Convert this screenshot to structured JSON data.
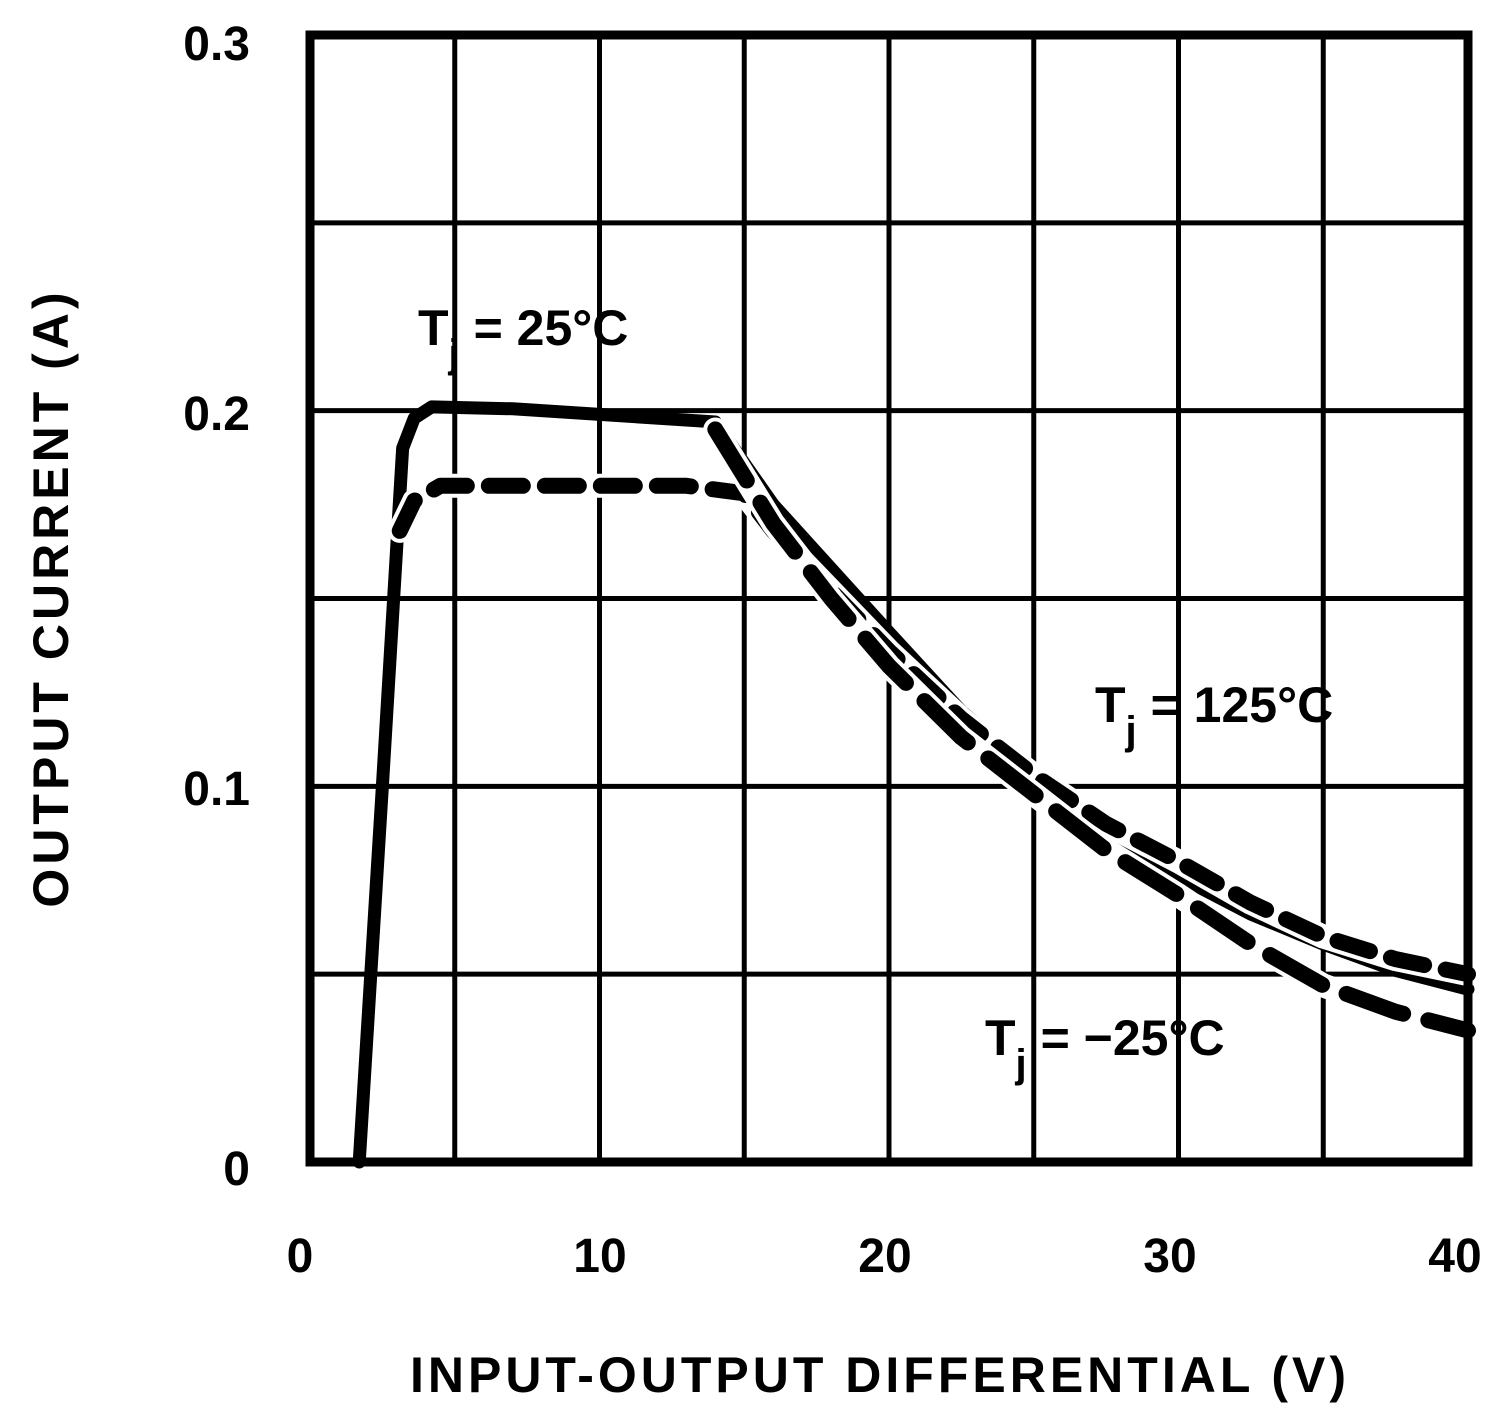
{
  "chart_data": {
    "type": "line",
    "title": "",
    "xlabel": "INPUT-OUTPUT DIFFERENTIAL (V)",
    "ylabel": "OUTPUT CURRENT (A)",
    "xlim": [
      0,
      40
    ],
    "ylim": [
      0,
      0.3
    ],
    "xticks": [
      "0",
      "10",
      "20",
      "30",
      "40"
    ],
    "yticks": [
      "0",
      "0.1",
      "0.2",
      "0.3"
    ],
    "grid": true,
    "grid_x_step": 5,
    "grid_y_step": 0.05,
    "line_color": "#000000",
    "series": [
      {
        "name": "Tj = 25°C",
        "style": "solid",
        "x": [
          1.7,
          2.5,
          3.2,
          3.6,
          4.2,
          7,
          10,
          14,
          16,
          18,
          20,
          22.5,
          25,
          27.5,
          30,
          32.5,
          35,
          37.5,
          40
        ],
        "y": [
          0,
          0.1,
          0.19,
          0.198,
          0.201,
          0.2005,
          0.199,
          0.197,
          0.175,
          0.158,
          0.141,
          0.12,
          0.104,
          0.088,
          0.076,
          0.066,
          0.058,
          0.051,
          0.046
        ]
      },
      {
        "name": "Tj = 125°C",
        "style": "short-dash",
        "x": [
          3.1,
          3.6,
          4.5,
          7,
          10,
          13,
          15,
          16,
          18,
          20,
          22.5,
          25,
          27.5,
          30,
          32.5,
          35,
          37.5,
          40
        ],
        "y": [
          0.168,
          0.176,
          0.18,
          0.18,
          0.18,
          0.18,
          0.178,
          0.168,
          0.152,
          0.136,
          0.118,
          0.103,
          0.09,
          0.08,
          0.069,
          0.06,
          0.054,
          0.05
        ]
      },
      {
        "name": "Tj = −25°C",
        "style": "long-dash",
        "x": [
          14,
          16,
          18,
          20,
          22.5,
          25,
          27.5,
          30,
          32.5,
          35,
          37.5,
          40
        ],
        "y": [
          0.195,
          0.17,
          0.15,
          0.132,
          0.113,
          0.098,
          0.083,
          0.071,
          0.058,
          0.047,
          0.04,
          0.035
        ]
      }
    ],
    "annotations": [
      {
        "sub": "j",
        "pre": "T",
        "text": " = 25°C"
      },
      {
        "sub": "j",
        "pre": "T",
        "text": " = 125°C"
      },
      {
        "sub": "j",
        "pre": "T",
        "text": " = −25°C"
      }
    ]
  }
}
